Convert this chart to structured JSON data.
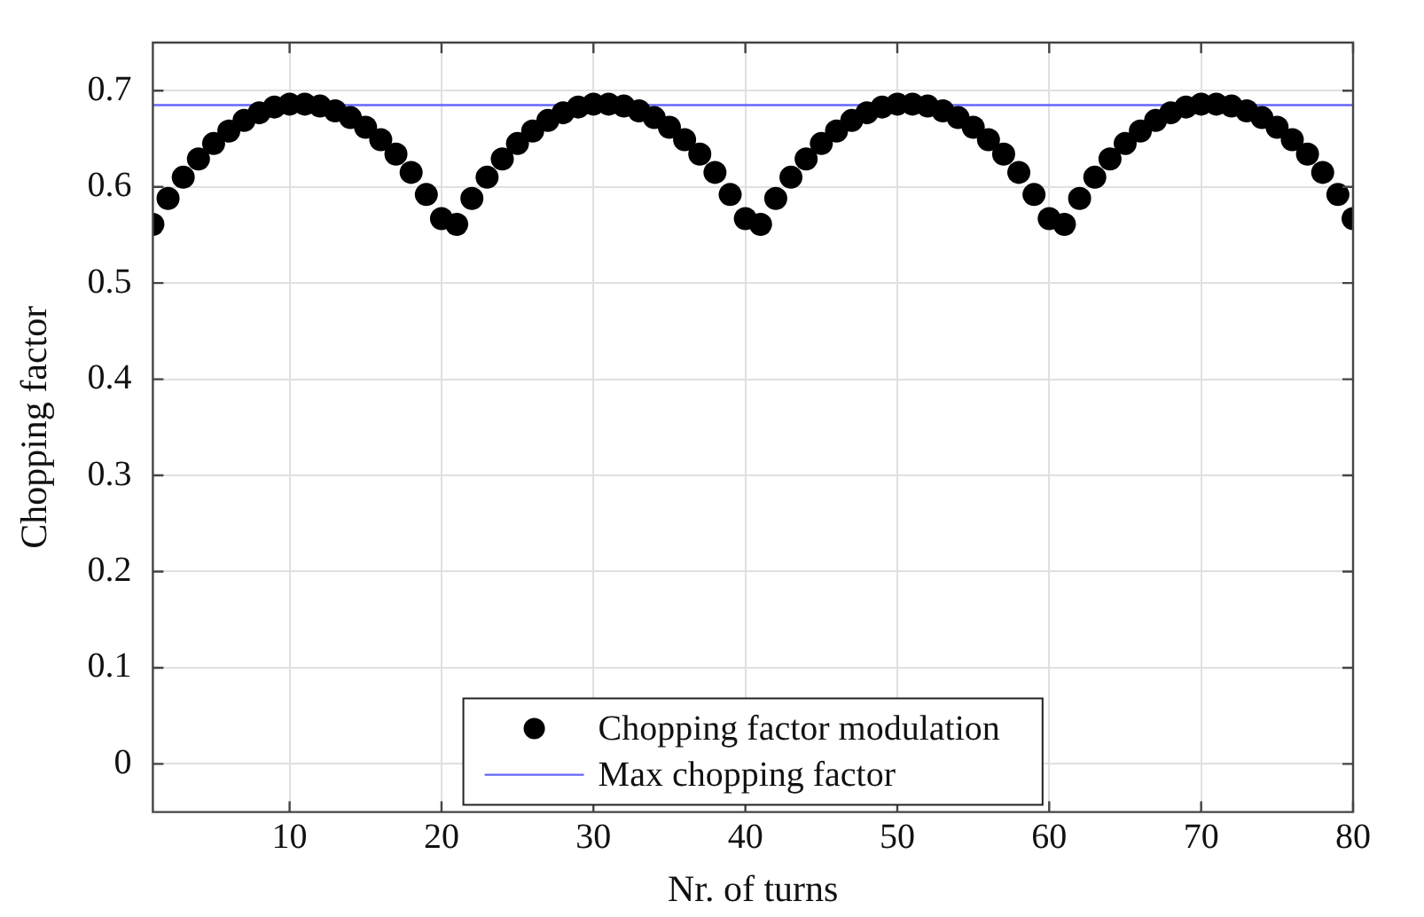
{
  "chart_data": {
    "type": "scatter",
    "xlabel": "Nr. of turns",
    "ylabel": "Chopping factor",
    "xlim": [
      1,
      80
    ],
    "ylim": [
      -0.05,
      0.75
    ],
    "xticks": [
      10,
      20,
      30,
      40,
      50,
      60,
      70,
      80
    ],
    "yticks": [
      0,
      0.1,
      0.2,
      0.3,
      0.4,
      0.5,
      0.6,
      0.7
    ],
    "grid": true,
    "legend": "bottom",
    "series": [
      {
        "name": "Chopping factor modulation",
        "marker": "circle",
        "color": "#000000",
        "x": [
          1,
          2,
          3,
          4,
          5,
          6,
          7,
          8,
          9,
          10,
          11,
          12,
          13,
          14,
          15,
          16,
          17,
          18,
          19,
          20,
          21,
          22,
          23,
          24,
          25,
          26,
          27,
          28,
          29,
          30,
          31,
          32,
          33,
          34,
          35,
          36,
          37,
          38,
          39,
          40,
          41,
          42,
          43,
          44,
          45,
          46,
          47,
          48,
          49,
          50,
          51,
          52,
          53,
          54,
          55,
          56,
          57,
          58,
          59,
          60,
          61,
          62,
          63,
          64,
          65,
          66,
          67,
          68,
          69,
          70,
          71,
          72,
          73,
          74,
          75,
          76,
          77,
          78,
          79,
          80
        ],
        "values": [
          0.561,
          0.588,
          0.61,
          0.629,
          0.645,
          0.658,
          0.669,
          0.677,
          0.683,
          0.686,
          0.686,
          0.684,
          0.679,
          0.672,
          0.662,
          0.649,
          0.634,
          0.615,
          0.592,
          0.567,
          0.561,
          0.588,
          0.61,
          0.629,
          0.645,
          0.658,
          0.669,
          0.677,
          0.683,
          0.686,
          0.686,
          0.684,
          0.679,
          0.672,
          0.662,
          0.649,
          0.634,
          0.615,
          0.592,
          0.567,
          0.561,
          0.588,
          0.61,
          0.629,
          0.645,
          0.658,
          0.669,
          0.677,
          0.683,
          0.686,
          0.686,
          0.684,
          0.679,
          0.672,
          0.662,
          0.649,
          0.634,
          0.615,
          0.592,
          0.567,
          0.561,
          0.588,
          0.61,
          0.629,
          0.645,
          0.658,
          0.669,
          0.677,
          0.683,
          0.686,
          0.686,
          0.684,
          0.679,
          0.672,
          0.662,
          0.649,
          0.634,
          0.615,
          0.592,
          0.567
        ]
      },
      {
        "name": "Max chopping factor",
        "type": "line",
        "color": "#6666ff",
        "line_style": "solid",
        "x": [
          1,
          80
        ],
        "values": [
          0.685,
          0.685
        ]
      }
    ]
  }
}
